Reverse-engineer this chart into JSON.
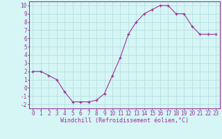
{
  "x": [
    0,
    1,
    2,
    3,
    4,
    5,
    6,
    7,
    8,
    9,
    10,
    11,
    12,
    13,
    14,
    15,
    16,
    17,
    18,
    19,
    20,
    21,
    22,
    23
  ],
  "y": [
    2,
    2,
    1.5,
    1,
    -0.5,
    -1.7,
    -1.7,
    -1.7,
    -1.5,
    -0.7,
    1.5,
    3.7,
    6.5,
    8,
    9,
    9.5,
    10,
    10,
    9,
    9,
    7.5,
    6.5,
    6.5,
    6.5
  ],
  "line_color": "#993399",
  "marker": "+",
  "bg_color": "#d6f5f5",
  "grid_color": "#b8e0e0",
  "axis_color": "#993399",
  "xlabel": "Windchill (Refroidissement éolien,°C)",
  "xlim": [
    -0.5,
    23.5
  ],
  "ylim": [
    -2.5,
    10.5
  ],
  "xticks": [
    0,
    1,
    2,
    3,
    4,
    5,
    6,
    7,
    8,
    9,
    10,
    11,
    12,
    13,
    14,
    15,
    16,
    17,
    18,
    19,
    20,
    21,
    22,
    23
  ],
  "yticks": [
    -2,
    -1,
    0,
    1,
    2,
    3,
    4,
    5,
    6,
    7,
    8,
    9,
    10
  ],
  "xlabel_fontsize": 6.0,
  "tick_fontsize": 5.5,
  "xlabel_color": "#993399",
  "tick_color": "#993399"
}
